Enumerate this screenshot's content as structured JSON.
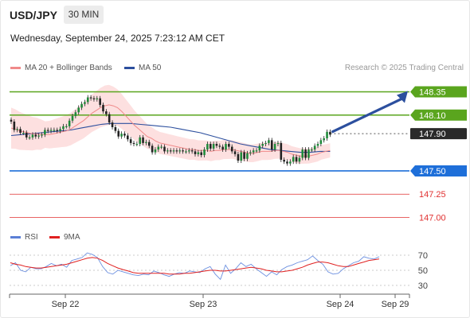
{
  "header": {
    "symbol": "USD/JPY",
    "timeframe": "30 MIN",
    "datetime": "Wednesday, September 24, 2025 7:23:12 AM CET"
  },
  "legend": {
    "items": [
      {
        "label": "MA 20 + Bollinger Bands",
        "color": "#f08a8a"
      },
      {
        "label": "MA 50",
        "color": "#2c4f9e"
      }
    ],
    "research": "Research © 2025 Trading Central"
  },
  "rsi_legend": {
    "items": [
      {
        "label": "RSI",
        "color": "#5b7fd6"
      },
      {
        "label": "9MA",
        "color": "#e02020"
      }
    ]
  },
  "chart_data": {
    "type": "candlestick",
    "price_axis_range": [
      146.98,
      148.45
    ],
    "x_ticks": [
      "Sep 22",
      "Sep 23",
      "Sep 24",
      "Sep 29"
    ],
    "levels": [
      {
        "label": "148.35",
        "value": 148.35,
        "kind": "resistance",
        "color": "#5aa51e"
      },
      {
        "label": "148.10",
        "value": 148.1,
        "kind": "resistance",
        "color": "#5aa51e"
      },
      {
        "label": "147.90",
        "value": 147.9,
        "kind": "last-price",
        "color": "#2a2a2a"
      },
      {
        "label": "147.50",
        "value": 147.5,
        "kind": "support",
        "color": "#1e6fd9"
      },
      {
        "label": "147.25",
        "value": 147.25,
        "kind": "support",
        "color": "#e03030"
      },
      {
        "label": "147.00",
        "value": 147.0,
        "kind": "support",
        "color": "#e03030"
      }
    ],
    "target_arrow": {
      "from": 147.9,
      "to": 148.35,
      "color": "#2c4f9e"
    },
    "close": [
      148.03,
      147.94,
      147.95,
      147.91,
      147.91,
      147.86,
      147.86,
      147.89,
      147.87,
      147.88,
      147.89,
      147.94,
      147.93,
      147.94,
      147.94,
      147.93,
      147.95,
      147.98,
      147.98,
      148.04,
      148.09,
      148.13,
      148.18,
      148.22,
      148.24,
      148.29,
      148.28,
      148.27,
      148.28,
      148.21,
      148.14,
      148.11,
      148.02,
      147.97,
      147.93,
      147.87,
      147.9,
      147.88,
      147.84,
      147.8,
      147.79,
      147.79,
      147.86,
      147.8,
      147.81,
      147.77,
      147.7,
      147.73,
      147.76,
      147.76,
      147.71,
      147.72,
      147.71,
      147.72,
      147.71,
      147.72,
      147.71,
      147.71,
      147.72,
      147.71,
      147.68,
      147.7,
      147.67,
      147.73,
      147.79,
      147.74,
      147.79,
      147.77,
      147.76,
      147.73,
      147.79,
      147.76,
      147.71,
      147.68,
      147.61,
      147.7,
      147.63,
      147.69,
      147.7,
      147.72,
      147.72,
      147.77,
      147.79,
      147.8,
      147.83,
      147.73,
      147.79,
      147.8,
      147.62,
      147.6,
      147.58,
      147.6,
      147.65,
      147.6,
      147.64,
      147.73,
      147.64,
      147.73,
      147.73,
      147.77,
      147.79,
      147.83,
      147.85,
      147.92,
      147.89
    ],
    "open": [
      148.05,
      148.03,
      147.94,
      147.95,
      147.91,
      147.91,
      147.86,
      147.86,
      147.89,
      147.87,
      147.88,
      147.89,
      147.94,
      147.93,
      147.94,
      147.94,
      147.93,
      147.95,
      147.98,
      147.98,
      148.04,
      148.09,
      148.13,
      148.18,
      148.22,
      148.24,
      148.29,
      148.28,
      148.27,
      148.28,
      148.21,
      148.14,
      148.11,
      148.02,
      147.97,
      147.93,
      147.87,
      147.9,
      147.88,
      147.84,
      147.8,
      147.79,
      147.79,
      147.86,
      147.8,
      147.81,
      147.77,
      147.7,
      147.73,
      147.76,
      147.76,
      147.71,
      147.72,
      147.71,
      147.72,
      147.71,
      147.72,
      147.71,
      147.71,
      147.72,
      147.71,
      147.68,
      147.7,
      147.67,
      147.73,
      147.79,
      147.74,
      147.79,
      147.77,
      147.76,
      147.73,
      147.79,
      147.76,
      147.71,
      147.68,
      147.61,
      147.7,
      147.63,
      147.69,
      147.7,
      147.72,
      147.72,
      147.77,
      147.79,
      147.8,
      147.83,
      147.73,
      147.79,
      147.8,
      147.62,
      147.6,
      147.58,
      147.6,
      147.65,
      147.6,
      147.64,
      147.73,
      147.64,
      147.73,
      147.73,
      147.77,
      147.79,
      147.83,
      147.85,
      147.92
    ],
    "ma20": [
      147.96,
      147.95,
      147.93,
      147.92,
      147.91,
      147.9,
      147.9,
      147.89,
      147.89,
      147.89,
      147.9,
      147.91,
      147.92,
      147.93,
      147.95,
      147.98,
      148.01,
      148.04,
      148.08,
      148.12,
      148.15,
      148.18,
      148.2,
      148.21,
      148.2,
      148.18,
      148.14,
      148.09,
      148.04,
      147.99,
      147.95,
      147.91,
      147.87,
      147.85,
      147.82,
      147.8,
      147.79,
      147.78,
      147.77,
      147.76,
      147.75,
      147.74,
      147.73,
      147.73,
      147.72,
      147.72,
      147.72,
      147.71,
      147.72,
      147.72,
      147.73,
      147.73,
      147.73,
      147.72,
      147.71,
      147.7,
      147.69,
      147.69,
      147.7,
      147.71,
      147.71,
      147.71,
      147.72,
      147.72,
      147.71,
      147.7,
      147.68,
      147.67,
      147.66,
      147.66,
      147.66,
      147.67,
      147.68,
      147.7,
      147.71,
      147.72
    ],
    "ma50": [
      147.88,
      147.89,
      147.9,
      147.91,
      147.92,
      147.93,
      147.94,
      147.96,
      147.98,
      148.0,
      148.01,
      148.01,
      148.01,
      148.0,
      147.99,
      147.98,
      147.97,
      147.95,
      147.93,
      147.91,
      147.88,
      147.85,
      147.82,
      147.79,
      147.77,
      147.75,
      147.73,
      147.72,
      147.71,
      147.7,
      147.7,
      147.71,
      147.71
    ],
    "rsi_axis_ticks": [
      30,
      50,
      70
    ],
    "rsi": [
      56,
      60,
      50,
      48,
      54,
      52,
      52,
      55,
      59,
      56,
      58,
      54,
      63,
      65,
      67,
      73,
      71,
      67,
      55,
      47,
      45,
      50,
      48,
      46,
      44,
      43,
      45,
      44,
      49,
      47,
      44,
      42,
      45,
      47,
      46,
      49,
      48,
      47,
      52,
      55,
      45,
      38,
      57,
      46,
      52,
      60,
      55,
      58,
      52,
      47,
      42,
      48,
      44,
      51,
      55,
      57,
      60,
      62,
      64,
      69,
      63,
      58,
      48,
      45,
      46,
      52,
      56,
      60,
      62,
      68,
      66,
      65,
      68
    ],
    "rsi_ma": [
      60,
      58,
      57,
      55,
      54,
      53,
      53,
      54,
      55,
      56,
      57,
      58,
      60,
      62,
      64,
      66,
      67,
      66,
      63,
      59,
      56,
      53,
      51,
      49,
      47,
      46,
      46,
      46,
      46,
      46,
      46,
      45,
      45,
      45,
      46,
      46,
      47,
      48,
      49,
      50,
      50,
      49,
      49,
      50,
      51,
      52,
      53,
      54,
      53,
      52,
      50,
      49,
      48,
      48,
      49,
      50,
      52,
      54,
      57,
      59,
      61,
      61,
      60,
      58,
      56,
      55,
      55,
      57,
      59,
      61,
      63,
      64,
      65
    ]
  }
}
